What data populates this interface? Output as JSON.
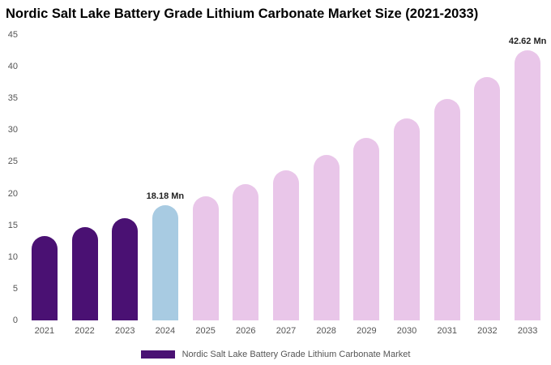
{
  "chart_data": {
    "type": "bar",
    "title": "Nordic Salt Lake Battery Grade Lithium Carbonate Market Size (2021-2033)",
    "xlabel": "",
    "ylabel": "",
    "unit": "Mn",
    "categories": [
      "2021",
      "2022",
      "2023",
      "2024",
      "2025",
      "2026",
      "2027",
      "2028",
      "2029",
      "2030",
      "2031",
      "2032",
      "2033"
    ],
    "values": [
      13.3,
      14.7,
      16.1,
      18.18,
      19.5,
      21.5,
      23.7,
      26.1,
      28.8,
      31.8,
      34.9,
      38.4,
      42.62
    ],
    "bar_colors": [
      "#4a1173",
      "#4a1173",
      "#4a1173",
      "#a8cbe2",
      "#e9c6e9",
      "#e9c6e9",
      "#e9c6e9",
      "#e9c6e9",
      "#e9c6e9",
      "#e9c6e9",
      "#e9c6e9",
      "#e9c6e9",
      "#e9c6e9"
    ],
    "annotations": [
      {
        "index": 3,
        "text": "18.18 Mn"
      },
      {
        "index": 12,
        "text": "42.62 Mn"
      }
    ],
    "yticks": [
      0,
      5,
      10,
      15,
      20,
      25,
      30,
      35,
      40,
      45
    ],
    "ylim": [
      0,
      45
    ],
    "grid": false,
    "legend_position": "bottom",
    "legend": [
      {
        "label": "Nordic Salt Lake Battery Grade Lithium Carbonate Market",
        "color": "#4a1173"
      }
    ]
  }
}
